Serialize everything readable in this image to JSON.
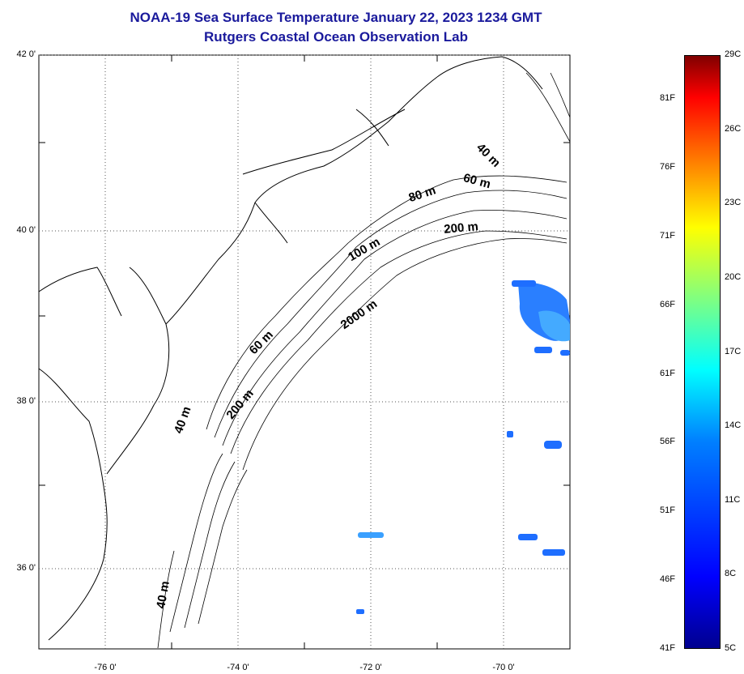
{
  "title": {
    "line1": "NOAA-19 Sea Surface Temperature January 22, 2023 1234 GMT",
    "line2": "Rutgers Coastal Ocean Observation Lab"
  },
  "axes": {
    "lat_ticks": [
      {
        "value": 42,
        "label": "42 0'"
      },
      {
        "value": 40,
        "label": "40 0'"
      },
      {
        "value": 38,
        "label": "38 0'"
      },
      {
        "value": 36,
        "label": "36 0'"
      }
    ],
    "lon_ticks": [
      {
        "value": -76,
        "label": "-76 0'"
      },
      {
        "value": -74,
        "label": "-74 0'"
      },
      {
        "value": -72,
        "label": "-72 0'"
      },
      {
        "value": -70,
        "label": "-70 0'"
      }
    ]
  },
  "bathymetry_labels": [
    {
      "text": "40 m"
    },
    {
      "text": "60 m"
    },
    {
      "text": "80 m"
    },
    {
      "text": "200 m"
    },
    {
      "text": "100 m"
    },
    {
      "text": "2000 m"
    },
    {
      "text": "60 m"
    },
    {
      "text": "200 m"
    },
    {
      "text": "40 m"
    },
    {
      "text": "40 m"
    }
  ],
  "colorbar": {
    "celsius": [
      {
        "value": 29,
        "label": "29C"
      },
      {
        "value": 26,
        "label": "26C"
      },
      {
        "value": 23,
        "label": "23C"
      },
      {
        "value": 20,
        "label": "20C"
      },
      {
        "value": 17,
        "label": "17C"
      },
      {
        "value": 14,
        "label": "14C"
      },
      {
        "value": 11,
        "label": "11C"
      },
      {
        "value": 8,
        "label": "8C"
      },
      {
        "value": 5,
        "label": "5C"
      }
    ],
    "fahrenheit": [
      {
        "value": 81,
        "label": "81F"
      },
      {
        "value": 76,
        "label": "76F"
      },
      {
        "value": 71,
        "label": "71F"
      },
      {
        "value": 66,
        "label": "66F"
      },
      {
        "value": 61,
        "label": "61F"
      },
      {
        "value": 56,
        "label": "56F"
      },
      {
        "value": 51,
        "label": "51F"
      },
      {
        "value": 46,
        "label": "46F"
      },
      {
        "value": 41,
        "label": "41F"
      }
    ],
    "colors": [
      "#00008f",
      "#0000ff",
      "#0080ff",
      "#00ffff",
      "#80ff80",
      "#ffff00",
      "#ff8000",
      "#ff0000",
      "#800000"
    ]
  },
  "colors": {
    "title": "#1a1a9c",
    "coast": "#000000",
    "sst_patch": "#1e6eff"
  }
}
